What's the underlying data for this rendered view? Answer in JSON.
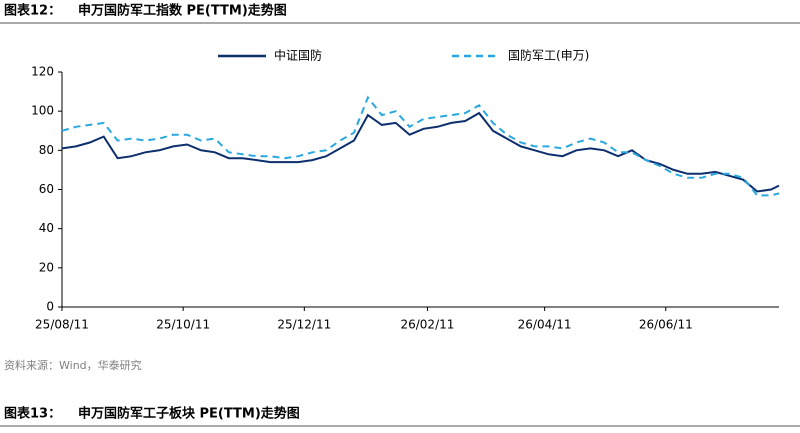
{
  "chart_data": {
    "type": "line",
    "figure_label": "图表12：",
    "title": "申万国防军工指数 PE(TTM)走势图",
    "source": "资料来源：Wind，华泰研究",
    "x": [
      "2025-08-11",
      "2025-08-18",
      "2025-08-25",
      "2025-09-01",
      "2025-09-08",
      "2025-09-15",
      "2025-09-22",
      "2025-09-29",
      "2025-10-06",
      "2025-10-13",
      "2025-10-20",
      "2025-10-27",
      "2025-11-03",
      "2025-11-10",
      "2025-11-17",
      "2025-11-24",
      "2025-12-01",
      "2025-12-08",
      "2025-12-15",
      "2025-12-22",
      "2025-12-29",
      "2026-01-05",
      "2026-01-12",
      "2026-01-19",
      "2026-01-26",
      "2026-02-02",
      "2026-02-09",
      "2026-02-16",
      "2026-02-23",
      "2026-03-02",
      "2026-03-09",
      "2026-03-16",
      "2026-03-23",
      "2026-03-30",
      "2026-04-06",
      "2026-04-13",
      "2026-04-20",
      "2026-04-27",
      "2026-05-04",
      "2026-05-11",
      "2026-05-18",
      "2026-05-25",
      "2026-06-01",
      "2026-06-08",
      "2026-06-15",
      "2026-06-22",
      "2026-06-29",
      "2026-07-06",
      "2026-07-13",
      "2026-07-20",
      "2026-07-27",
      "2026-08-03",
      "2026-08-07"
    ],
    "series": [
      {
        "name": "中证国防",
        "color": "#0d2f6e",
        "dash": false,
        "values": [
          81,
          82,
          84,
          87,
          76,
          77,
          79,
          80,
          82,
          83,
          80,
          79,
          76,
          76,
          75,
          74,
          74,
          74,
          75,
          77,
          81,
          85,
          98,
          93,
          94,
          88,
          91,
          92,
          94,
          95,
          99,
          90,
          86,
          82,
          80,
          78,
          77,
          80,
          81,
          80,
          77,
          80,
          75,
          73,
          70,
          68,
          68,
          69,
          67,
          65,
          59,
          60,
          62
        ]
      },
      {
        "name": "国防军工(申万)",
        "color": "#29a8e0",
        "dash": true,
        "values": [
          90,
          92,
          93,
          94,
          85,
          86,
          85,
          86,
          88,
          88,
          85,
          86,
          79,
          78,
          77,
          77,
          76,
          77,
          79,
          80,
          85,
          89,
          107,
          98,
          100,
          92,
          96,
          97,
          98,
          99,
          103,
          94,
          88,
          84,
          82,
          82,
          81,
          84,
          86,
          84,
          79,
          79,
          75,
          72,
          68,
          66,
          66,
          68,
          68,
          66,
          57,
          57,
          58
        ]
      }
    ],
    "xlim": [
      "2025-08-11",
      "2026-08-07"
    ],
    "xticks": [
      {
        "value": "2025-08-11",
        "label": "25/08/11"
      },
      {
        "value": "2025-10-11",
        "label": "25/10/11"
      },
      {
        "value": "2025-12-11",
        "label": "25/12/11"
      },
      {
        "value": "2026-02-11",
        "label": "26/02/11"
      },
      {
        "value": "2026-04-11",
        "label": "26/04/11"
      },
      {
        "value": "2026-06-11",
        "label": "26/06/11"
      }
    ],
    "ylim": [
      0,
      120
    ],
    "yticks": [
      0,
      20,
      40,
      60,
      80,
      100,
      120
    ],
    "grid": false,
    "legend": "top"
  },
  "next_figure": {
    "label": "图表13：",
    "title": "申万国防军工子板块 PE(TTM)走势图"
  }
}
